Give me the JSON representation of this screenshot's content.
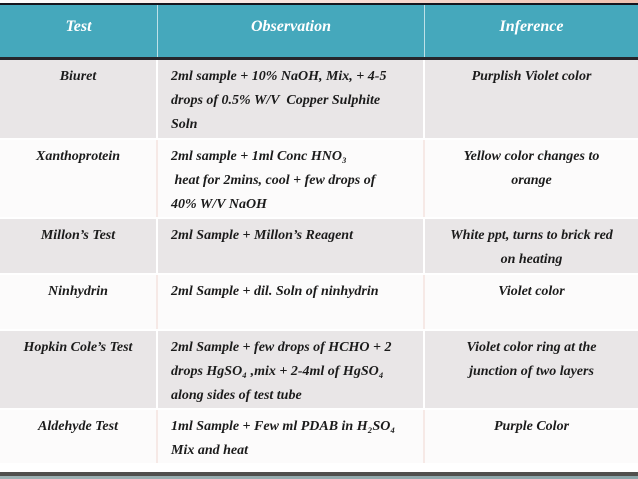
{
  "table": {
    "headers": [
      {
        "label": "Test"
      },
      {
        "label": "Observation"
      },
      {
        "label": "Inference"
      }
    ],
    "rows": [
      {
        "test": "Biuret",
        "observation": [
          "2ml sample + 10% NaOH, Mix, + 4-5",
          "drops of 0.5% W/V  Copper Sulphite",
          "Soln"
        ],
        "inference": [
          "Purplish Violet color"
        ]
      },
      {
        "test": "Xanthoprotein",
        "observation": [
          "2ml sample + 1ml Conc HNO₃",
          " heat for 2mins, cool + few drops of",
          "40% W/V NaOH"
        ],
        "inference": [
          "Yellow color changes to",
          "orange"
        ]
      },
      {
        "test": "Millon’s Test",
        "observation": [
          "2ml Sample + Millon’s Reagent"
        ],
        "inference": [
          "White ppt, turns to brick red",
          "on heating"
        ]
      },
      {
        "test": "Ninhydrin",
        "observation": [
          "2ml Sample + dil. Soln of ninhydrin"
        ],
        "inference": [
          "Violet color"
        ]
      },
      {
        "test": "Hopkin Cole’s Test",
        "observation": [
          "2ml Sample + few drops of HCHO + 2",
          "drops HgSO₄ ,mix + 2-4ml of HgSO₄",
          "along sides of test tube"
        ],
        "inference": [
          "Violet color ring at the",
          "junction of two layers"
        ]
      },
      {
        "test": "Aldehyde Test",
        "observation": [
          "1ml Sample + Few ml PDAB in H₂SO₄",
          "Mix and heat"
        ],
        "inference": [
          "Purple Color"
        ]
      }
    ],
    "colors": {
      "header_bg": "#45a8bc",
      "header_text": "#ffffff",
      "row_alt_bg": "#e9e6e7",
      "row_base_bg": "#fcfbfb",
      "top_rule": "#15151d",
      "bottom_rule": "#504f4d",
      "top_accent_pink": "#eec0ae"
    }
  }
}
